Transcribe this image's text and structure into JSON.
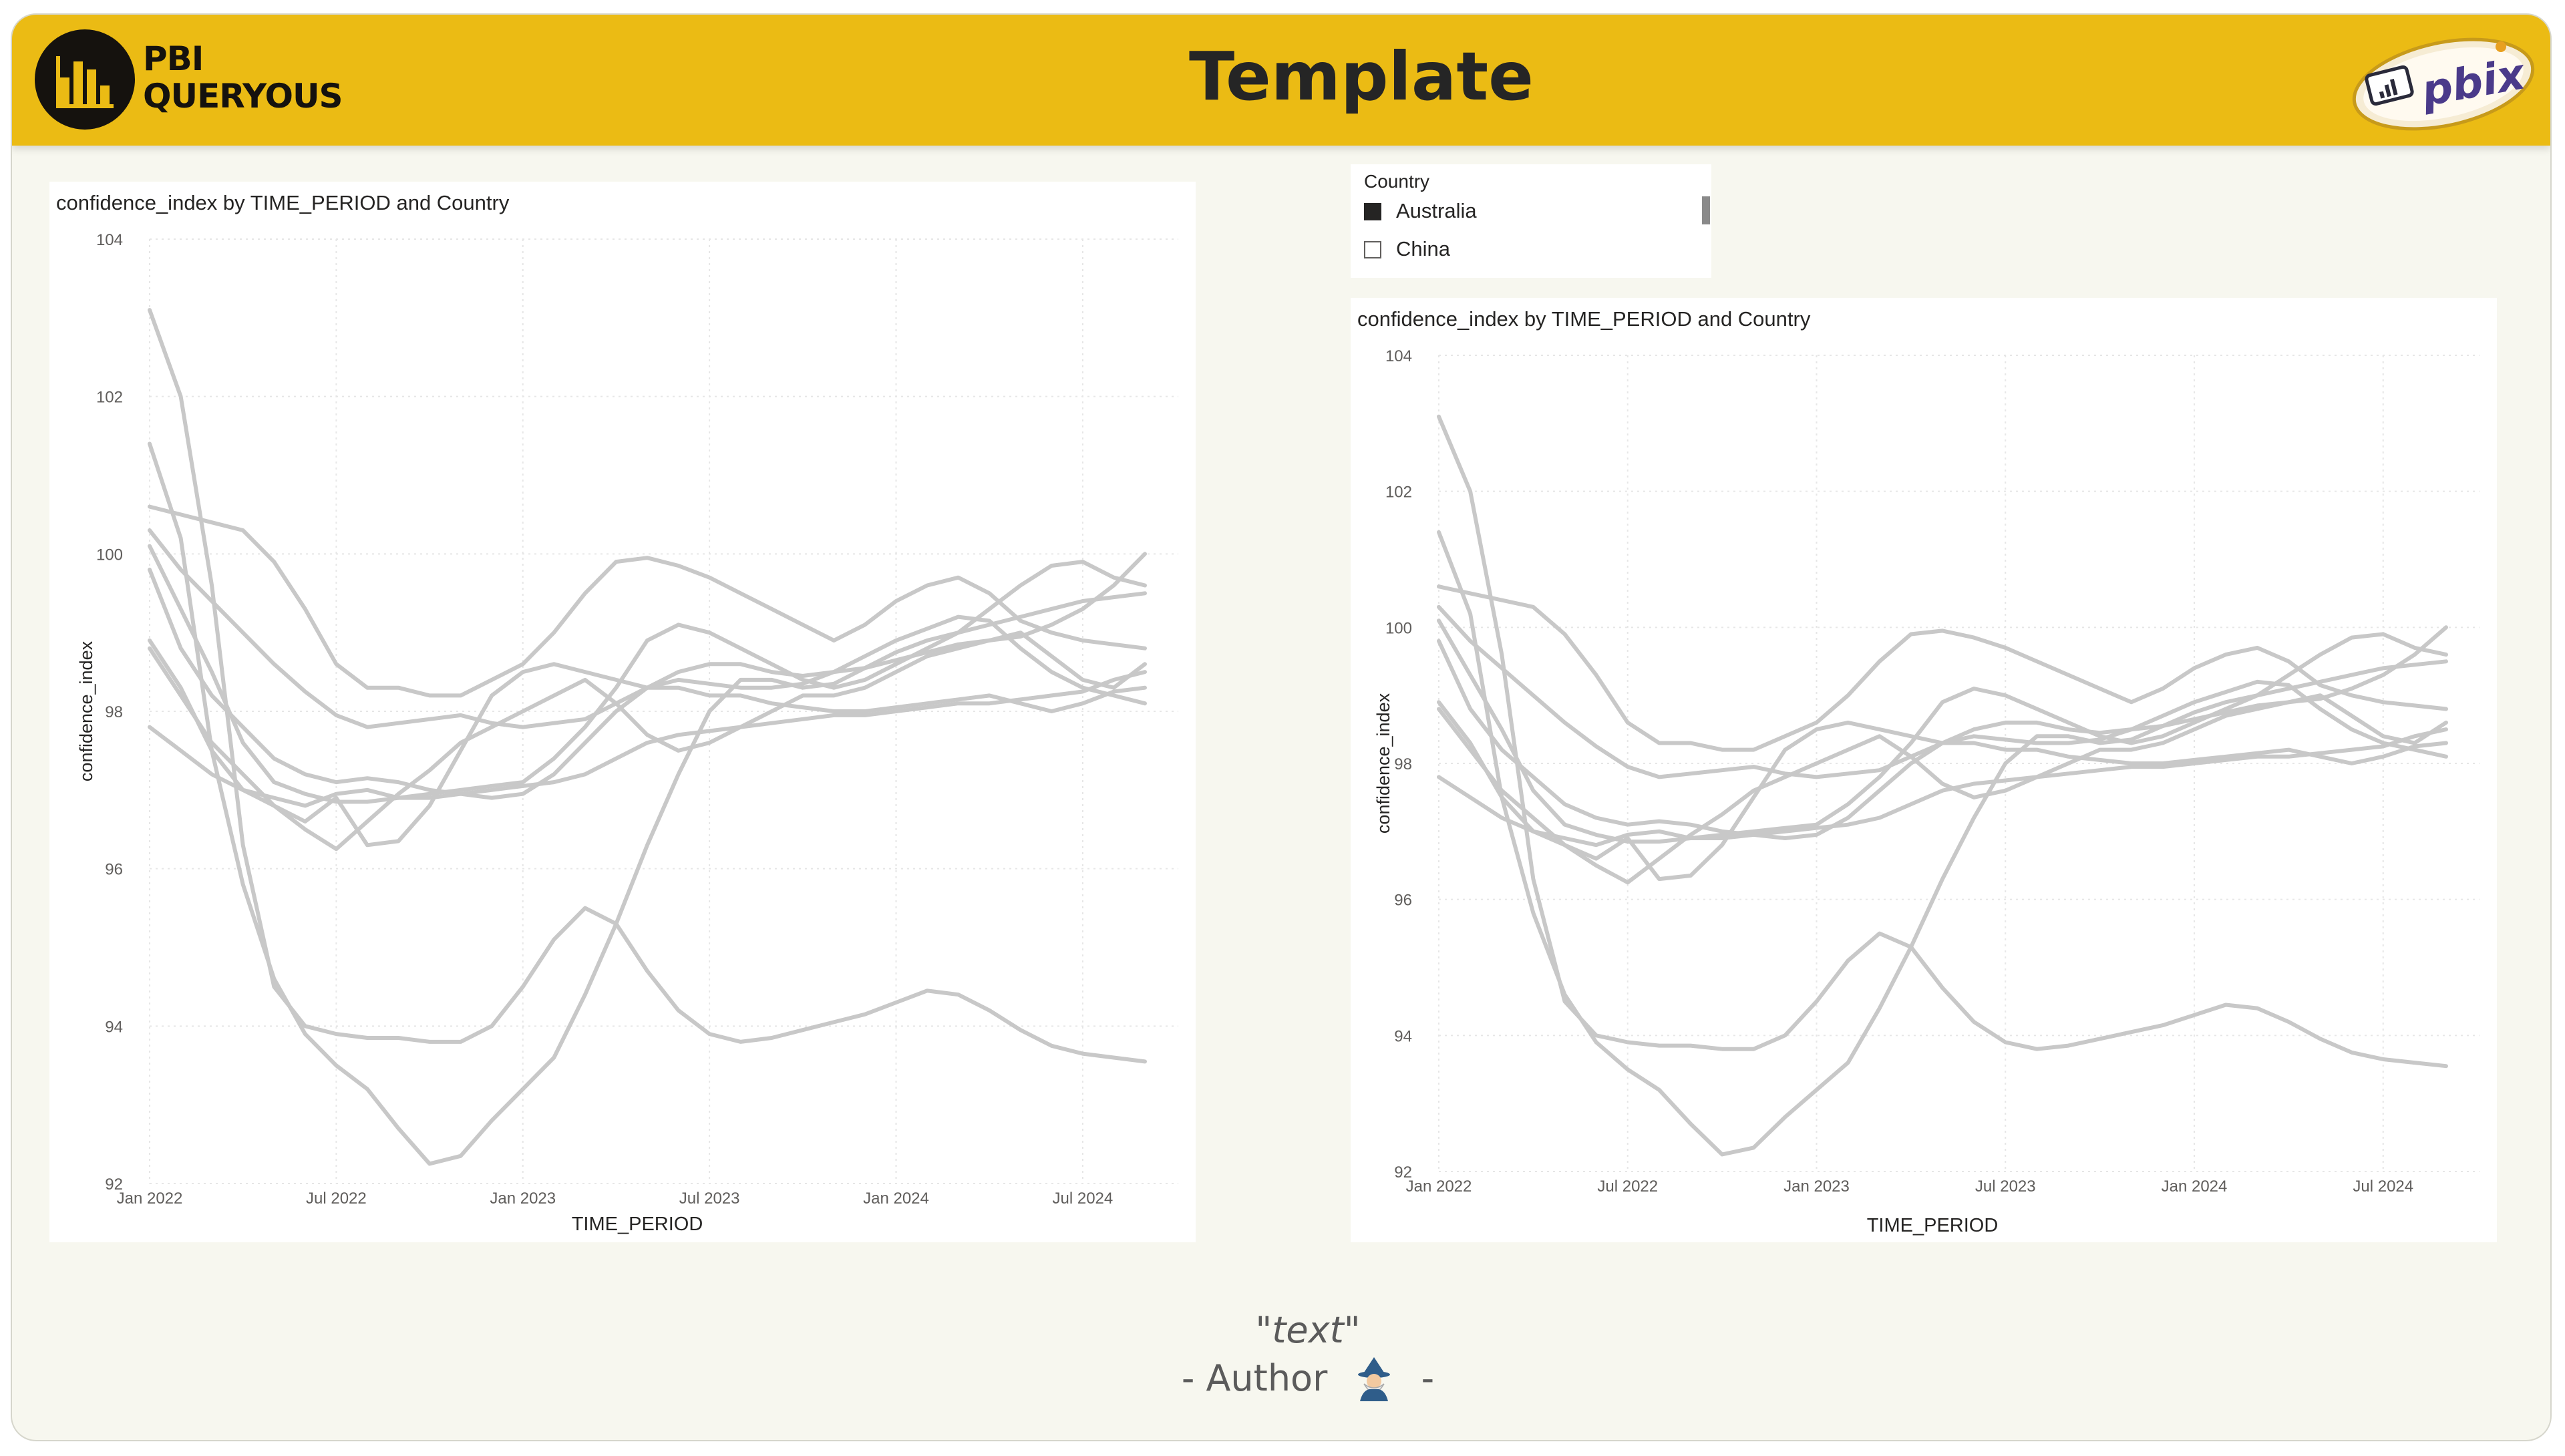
{
  "header": {
    "brand_line1": "PBI",
    "brand_line2": "QUERYOUS",
    "title": "Template",
    "badge_text": "pbix",
    "colors": {
      "banner": "#ebbb14",
      "logo_dark": "#15120e",
      "title": "#252525"
    },
    "icons": {
      "logo": "bar-chart-logo-icon",
      "badge": "pbix-file-badge-icon"
    }
  },
  "slicer": {
    "header": "Country",
    "items": [
      {
        "label": "Australia",
        "checked": true
      },
      {
        "label": "China",
        "checked": false
      }
    ]
  },
  "footer": {
    "quote": "\"text\"",
    "author_prefix": "- Author",
    "author_suffix": "-",
    "author_icon": "wizard-avatar-icon"
  },
  "chart_data": [
    {
      "type": "line",
      "title": "confidence_index by TIME_PERIOD and Country",
      "xlabel": "TIME_PERIOD",
      "ylabel": "confidence_index",
      "x_ticks": [
        "Jan 2022",
        "Jul 2022",
        "Jan 2023",
        "Jul 2023",
        "Jan 2024",
        "Jul 2024"
      ],
      "y_ticks": [
        92,
        94,
        96,
        98,
        100,
        102,
        104
      ],
      "ylim": [
        92,
        104
      ],
      "x_start_month": "Jan 2022",
      "x_end_month": "Sep 2024",
      "grid": true,
      "line_color": "#c8c8c8",
      "series": [
        {
          "values": [
            103.1,
            102.0,
            99.6,
            96.3,
            94.5,
            94.0,
            93.9,
            93.85,
            93.85,
            93.8,
            93.8,
            94.0,
            94.5,
            95.1,
            95.5,
            95.3,
            94.7,
            94.2,
            93.9,
            93.8,
            93.85,
            93.95,
            94.05,
            94.15,
            94.3,
            94.45,
            94.4,
            94.2,
            93.95,
            93.75,
            93.65,
            93.6,
            93.55
          ]
        },
        {
          "values": [
            101.4,
            100.2,
            97.5,
            95.8,
            94.6,
            93.9,
            93.5,
            93.2,
            92.7,
            92.25,
            92.35,
            92.8,
            93.2,
            93.6,
            94.4,
            95.3,
            96.3,
            97.2,
            98.0,
            98.4,
            98.4,
            98.3,
            98.35,
            98.55,
            98.75,
            98.9,
            99.0,
            99.3,
            99.6,
            99.85,
            99.9,
            99.7,
            99.6
          ]
        },
        {
          "values": [
            100.6,
            100.5,
            100.4,
            100.3,
            99.9,
            99.3,
            98.6,
            98.3,
            98.3,
            98.2,
            98.2,
            98.4,
            98.6,
            99.0,
            99.5,
            99.9,
            99.95,
            99.85,
            99.7,
            99.5,
            99.3,
            99.1,
            98.9,
            99.1,
            99.4,
            99.6,
            99.7,
            99.5,
            99.15,
            99.0,
            98.9,
            98.85,
            98.8
          ]
        },
        {
          "values": [
            100.3,
            99.8,
            99.4,
            99.0,
            98.6,
            98.25,
            97.95,
            97.8,
            97.85,
            97.9,
            97.95,
            97.85,
            97.8,
            97.85,
            97.9,
            98.1,
            98.3,
            98.5,
            98.6,
            98.6,
            98.5,
            98.45,
            98.5,
            98.55,
            98.65,
            98.75,
            98.85,
            98.9,
            98.95,
            99.1,
            99.3,
            99.6,
            100.0
          ]
        },
        {
          "values": [
            100.1,
            99.3,
            98.5,
            97.6,
            97.1,
            96.95,
            96.85,
            96.85,
            96.9,
            96.95,
            97.0,
            97.05,
            97.1,
            97.4,
            97.8,
            98.3,
            98.9,
            99.1,
            99.0,
            98.8,
            98.6,
            98.4,
            98.3,
            98.4,
            98.6,
            98.8,
            99.0,
            99.1,
            99.2,
            99.3,
            99.4,
            99.45,
            99.5
          ]
        },
        {
          "values": [
            99.8,
            98.8,
            98.2,
            97.8,
            97.4,
            97.2,
            97.1,
            97.15,
            97.1,
            97.0,
            96.95,
            96.9,
            96.95,
            97.2,
            97.6,
            98.0,
            98.3,
            98.4,
            98.35,
            98.3,
            98.3,
            98.35,
            98.5,
            98.7,
            98.9,
            99.05,
            99.2,
            99.15,
            98.8,
            98.5,
            98.3,
            98.2,
            98.1
          ]
        },
        {
          "values": [
            98.9,
            98.3,
            97.5,
            97.0,
            96.8,
            96.5,
            96.25,
            96.6,
            96.95,
            97.25,
            97.6,
            97.8,
            98.0,
            98.2,
            98.4,
            98.1,
            97.7,
            97.5,
            97.6,
            97.8,
            98.0,
            98.2,
            98.2,
            98.3,
            98.5,
            98.7,
            98.8,
            98.9,
            99.0,
            98.7,
            98.4,
            98.3,
            98.6
          ]
        },
        {
          "values": [
            98.8,
            98.2,
            97.6,
            97.2,
            96.8,
            96.6,
            96.9,
            96.3,
            96.35,
            96.8,
            97.5,
            98.2,
            98.5,
            98.6,
            98.5,
            98.4,
            98.3,
            98.3,
            98.2,
            98.2,
            98.1,
            98.05,
            98.0,
            98.0,
            98.05,
            98.1,
            98.15,
            98.2,
            98.1,
            98.0,
            98.1,
            98.25,
            98.3
          ]
        },
        {
          "values": [
            97.8,
            97.5,
            97.2,
            97.0,
            96.9,
            96.8,
            96.95,
            97.0,
            96.9,
            96.9,
            96.95,
            97.0,
            97.05,
            97.1,
            97.2,
            97.4,
            97.6,
            97.7,
            97.75,
            97.8,
            97.85,
            97.9,
            97.95,
            97.95,
            98.0,
            98.05,
            98.1,
            98.1,
            98.15,
            98.2,
            98.25,
            98.4,
            98.5
          ]
        }
      ]
    },
    {
      "type": "line",
      "title": "confidence_index by TIME_PERIOD and Country",
      "xlabel": "TIME_PERIOD",
      "ylabel": "confidence_index",
      "x_ticks": [
        "Jan 2022",
        "Jul 2022",
        "Jan 2023",
        "Jul 2023",
        "Jan 2024",
        "Jul 2024"
      ],
      "y_ticks": [
        92,
        94,
        96,
        98,
        100,
        102,
        104
      ],
      "ylim": [
        92,
        104
      ],
      "x_start_month": "Jan 2022",
      "x_end_month": "Sep 2024",
      "grid": true,
      "line_color": "#c8c8c8",
      "series": [
        {
          "values": [
            103.1,
            102.0,
            99.6,
            96.3,
            94.5,
            94.0,
            93.9,
            93.85,
            93.85,
            93.8,
            93.8,
            94.0,
            94.5,
            95.1,
            95.5,
            95.3,
            94.7,
            94.2,
            93.9,
            93.8,
            93.85,
            93.95,
            94.05,
            94.15,
            94.3,
            94.45,
            94.4,
            94.2,
            93.95,
            93.75,
            93.65,
            93.6,
            93.55
          ]
        },
        {
          "values": [
            101.4,
            100.2,
            97.5,
            95.8,
            94.6,
            93.9,
            93.5,
            93.2,
            92.7,
            92.25,
            92.35,
            92.8,
            93.2,
            93.6,
            94.4,
            95.3,
            96.3,
            97.2,
            98.0,
            98.4,
            98.4,
            98.3,
            98.35,
            98.55,
            98.75,
            98.9,
            99.0,
            99.3,
            99.6,
            99.85,
            99.9,
            99.7,
            99.6
          ]
        },
        {
          "values": [
            100.6,
            100.5,
            100.4,
            100.3,
            99.9,
            99.3,
            98.6,
            98.3,
            98.3,
            98.2,
            98.2,
            98.4,
            98.6,
            99.0,
            99.5,
            99.9,
            99.95,
            99.85,
            99.7,
            99.5,
            99.3,
            99.1,
            98.9,
            99.1,
            99.4,
            99.6,
            99.7,
            99.5,
            99.15,
            99.0,
            98.9,
            98.85,
            98.8
          ]
        },
        {
          "values": [
            100.3,
            99.8,
            99.4,
            99.0,
            98.6,
            98.25,
            97.95,
            97.8,
            97.85,
            97.9,
            97.95,
            97.85,
            97.8,
            97.85,
            97.9,
            98.1,
            98.3,
            98.5,
            98.6,
            98.6,
            98.5,
            98.45,
            98.5,
            98.55,
            98.65,
            98.75,
            98.85,
            98.9,
            98.95,
            99.1,
            99.3,
            99.6,
            100.0
          ]
        },
        {
          "values": [
            100.1,
            99.3,
            98.5,
            97.6,
            97.1,
            96.95,
            96.85,
            96.85,
            96.9,
            96.95,
            97.0,
            97.05,
            97.1,
            97.4,
            97.8,
            98.3,
            98.9,
            99.1,
            99.0,
            98.8,
            98.6,
            98.4,
            98.3,
            98.4,
            98.6,
            98.8,
            99.0,
            99.1,
            99.2,
            99.3,
            99.4,
            99.45,
            99.5
          ]
        },
        {
          "values": [
            99.8,
            98.8,
            98.2,
            97.8,
            97.4,
            97.2,
            97.1,
            97.15,
            97.1,
            97.0,
            96.95,
            96.9,
            96.95,
            97.2,
            97.6,
            98.0,
            98.3,
            98.4,
            98.35,
            98.3,
            98.3,
            98.35,
            98.5,
            98.7,
            98.9,
            99.05,
            99.2,
            99.15,
            98.8,
            98.5,
            98.3,
            98.2,
            98.1
          ]
        },
        {
          "values": [
            98.9,
            98.3,
            97.5,
            97.0,
            96.8,
            96.5,
            96.25,
            96.6,
            96.95,
            97.25,
            97.6,
            97.8,
            98.0,
            98.2,
            98.4,
            98.1,
            97.7,
            97.5,
            97.6,
            97.8,
            98.0,
            98.2,
            98.2,
            98.3,
            98.5,
            98.7,
            98.8,
            98.9,
            99.0,
            98.7,
            98.4,
            98.3,
            98.6
          ]
        },
        {
          "values": [
            98.8,
            98.2,
            97.6,
            97.2,
            96.8,
            96.6,
            96.9,
            96.3,
            96.35,
            96.8,
            97.5,
            98.2,
            98.5,
            98.6,
            98.5,
            98.4,
            98.3,
            98.3,
            98.2,
            98.2,
            98.1,
            98.05,
            98.0,
            98.0,
            98.05,
            98.1,
            98.15,
            98.2,
            98.1,
            98.0,
            98.1,
            98.25,
            98.3
          ]
        },
        {
          "values": [
            97.8,
            97.5,
            97.2,
            97.0,
            96.9,
            96.8,
            96.95,
            97.0,
            96.9,
            96.9,
            96.95,
            97.0,
            97.05,
            97.1,
            97.2,
            97.4,
            97.6,
            97.7,
            97.75,
            97.8,
            97.85,
            97.9,
            97.95,
            97.95,
            98.0,
            98.05,
            98.1,
            98.1,
            98.15,
            98.2,
            98.25,
            98.4,
            98.5
          ]
        }
      ]
    }
  ]
}
